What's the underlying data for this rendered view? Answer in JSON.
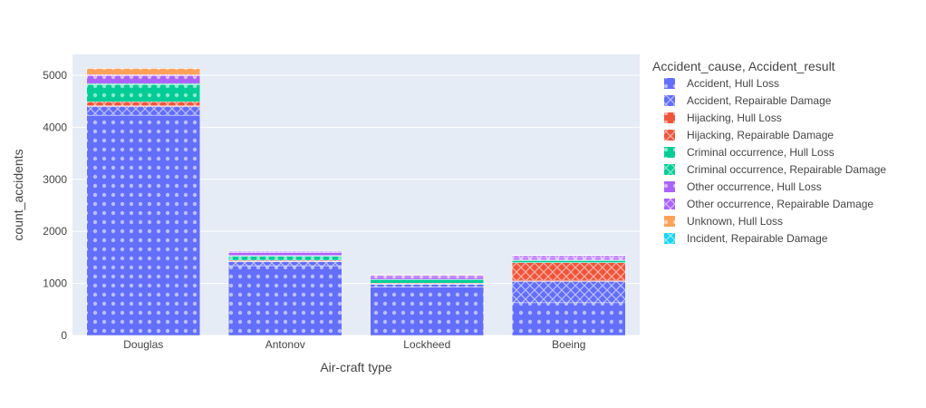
{
  "chart_data": {
    "type": "bar",
    "stacked": true,
    "categories": [
      "Douglas",
      "Antonov",
      "Lockheed",
      "Boeing"
    ],
    "xlabel": "Air-craft type",
    "ylabel": "count_accidents",
    "ylim": [
      0,
      5400
    ],
    "yticks": [
      0,
      1000,
      2000,
      3000,
      4000,
      5000
    ],
    "grid": true,
    "legend_title": "Accident_cause, Accident_result",
    "legend_position": "right",
    "series": [
      {
        "name": "Accident, Hull Loss",
        "color": "#636efa",
        "pattern": "dots",
        "values": [
          4230,
          1340,
          930,
          630
        ]
      },
      {
        "name": "Accident, Repairable Damage",
        "color": "#636efa",
        "pattern": "cross",
        "values": [
          170,
          80,
          55,
          410
        ]
      },
      {
        "name": "Hijacking, Hull Loss",
        "color": "#ef553b",
        "pattern": "dots",
        "values": [
          20,
          5,
          5,
          20
        ]
      },
      {
        "name": "Hijacking, Repairable Damage",
        "color": "#ef553b",
        "pattern": "cross",
        "values": [
          70,
          20,
          15,
          340
        ]
      },
      {
        "name": "Criminal occurrence, Hull Loss",
        "color": "#00cc96",
        "pattern": "dots",
        "values": [
          330,
          80,
          70,
          40
        ]
      },
      {
        "name": "Criminal occurrence, Repairable Damage",
        "color": "#00cc96",
        "pattern": "cross",
        "values": [
          20,
          10,
          5,
          10
        ]
      },
      {
        "name": "Other occurrence, Hull Loss",
        "color": "#ab63fa",
        "pattern": "dots",
        "values": [
          150,
          60,
          50,
          40
        ]
      },
      {
        "name": "Other occurrence, Repairable Damage",
        "color": "#ab63fa",
        "pattern": "cross",
        "values": [
          20,
          20,
          25,
          40
        ]
      },
      {
        "name": "Unknown, Hull Loss",
        "color": "#ffa15a",
        "pattern": "dots",
        "values": [
          120,
          5,
          10,
          10
        ]
      },
      {
        "name": "Incident, Repairable Damage",
        "color": "#19d3f3",
        "pattern": "cross",
        "values": [
          0,
          0,
          0,
          5
        ]
      }
    ]
  }
}
